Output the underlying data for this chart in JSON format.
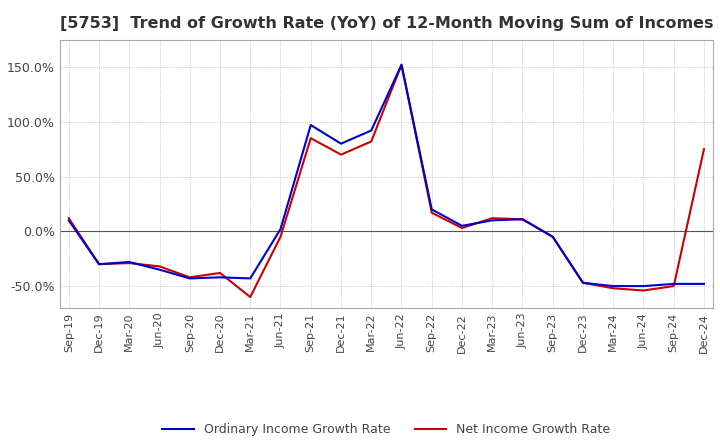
{
  "title": "[5753]  Trend of Growth Rate (YoY) of 12-Month Moving Sum of Incomes",
  "title_fontsize": 11.5,
  "legend_labels": [
    "Ordinary Income Growth Rate",
    "Net Income Growth Rate"
  ],
  "legend_colors": [
    "#0000CC",
    "#CC0000"
  ],
  "ylim": [
    -70,
    175
  ],
  "yticks": [
    -50,
    0,
    50,
    100,
    150
  ],
  "background_color": "#FFFFFF",
  "grid_color": "#AAAAAA",
  "x_labels": [
    "Sep-19",
    "Dec-19",
    "Mar-20",
    "Jun-20",
    "Sep-20",
    "Dec-20",
    "Mar-21",
    "Jun-21",
    "Sep-21",
    "Dec-21",
    "Mar-22",
    "Jun-22",
    "Sep-22",
    "Dec-22",
    "Mar-23",
    "Jun-23",
    "Sep-23",
    "Dec-23",
    "Mar-24",
    "Jun-24",
    "Sep-24",
    "Dec-24"
  ],
  "ordinary_income_gr": [
    10,
    -30,
    -28,
    -35,
    -43,
    -42,
    -43,
    2,
    97,
    80,
    92,
    152,
    20,
    5,
    10,
    11,
    -5,
    -47,
    -50,
    -50,
    -48,
    -48
  ],
  "net_income_gr": [
    12,
    -30,
    -29,
    -32,
    -42,
    -38,
    -60,
    -5,
    85,
    70,
    82,
    152,
    17,
    3,
    12,
    11,
    -5,
    -47,
    -52,
    -54,
    -50,
    75
  ]
}
